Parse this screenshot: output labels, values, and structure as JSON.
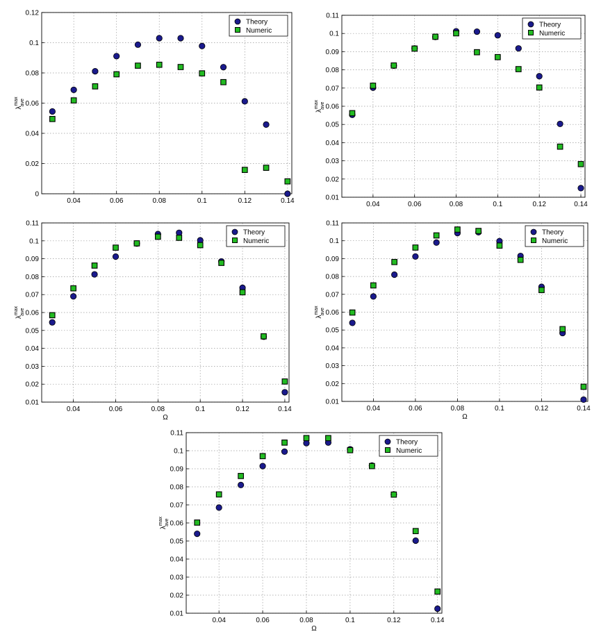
{
  "legend": {
    "theory": "Theory",
    "numeric": "Numeric"
  },
  "colors": {
    "theory": "#1a1a8c",
    "numeric": "#22bb22",
    "marker_edge": "#000000",
    "grid": "#9a9a9a"
  },
  "chart_data": [
    {
      "type": "scatter",
      "xlabel": "",
      "ylabel": {
        "base": "λ",
        "sup": "max",
        "sub": "ave"
      },
      "xlim": [
        0.025,
        0.142
      ],
      "ylim": [
        0,
        0.12
      ],
      "xticks": [
        "0.04",
        "0.06",
        "0.08",
        "0.1",
        "0.12",
        "0.14"
      ],
      "yticks": [
        "0",
        "0.02",
        "0.04",
        "0.06",
        "0.08",
        "0.1",
        "0.12"
      ],
      "legend_position": "top-right",
      "series": [
        {
          "name": "Theory",
          "marker": "circle",
          "x": [
            0.03,
            0.04,
            0.05,
            0.06,
            0.07,
            0.08,
            0.09,
            0.1,
            0.11,
            0.12,
            0.13,
            0.14
          ],
          "y": [
            0.0545,
            0.0688,
            0.0811,
            0.0911,
            0.0987,
            0.103,
            0.103,
            0.0978,
            0.0838,
            0.0612,
            0.0458,
            0.0
          ]
        },
        {
          "name": "Numeric",
          "marker": "square",
          "x": [
            0.03,
            0.04,
            0.05,
            0.06,
            0.07,
            0.08,
            0.09,
            0.1,
            0.11,
            0.12,
            0.13,
            0.14
          ],
          "y": [
            0.0495,
            0.0618,
            0.0711,
            0.0791,
            0.0848,
            0.0854,
            0.0839,
            0.0797,
            0.0739,
            0.0158,
            0.0172,
            0.0082
          ]
        }
      ]
    },
    {
      "type": "scatter",
      "xlabel": "",
      "ylabel": {
        "base": "λ",
        "sup": "max",
        "sub": "ave"
      },
      "xlim": [
        0.025,
        0.142
      ],
      "ylim": [
        0.01,
        0.11
      ],
      "xticks": [
        "0.04",
        "0.06",
        "0.08",
        "0.1",
        "0.12",
        "0.14"
      ],
      "yticks": [
        "0.01",
        "0.02",
        "0.03",
        "0.04",
        "0.05",
        "0.06",
        "0.07",
        "0.08",
        "0.09",
        "0.1",
        "0.11"
      ],
      "legend_position": "top-right",
      "series": [
        {
          "name": "Theory",
          "marker": "circle",
          "x": [
            0.03,
            0.04,
            0.05,
            0.06,
            0.07,
            0.08,
            0.09,
            0.1,
            0.11,
            0.12,
            0.13,
            0.14
          ],
          "y": [
            0.0553,
            0.0702,
            0.0823,
            0.0918,
            0.0981,
            0.1012,
            0.101,
            0.099,
            0.0918,
            0.0765,
            0.0503,
            0.015
          ]
        },
        {
          "name": "Numeric",
          "marker": "square",
          "x": [
            0.03,
            0.04,
            0.05,
            0.06,
            0.07,
            0.08,
            0.09,
            0.1,
            0.11,
            0.12,
            0.13,
            0.14
          ],
          "y": [
            0.0562,
            0.0713,
            0.0824,
            0.0917,
            0.0982,
            0.1001,
            0.0897,
            0.087,
            0.0804,
            0.0703,
            0.0378,
            0.0282
          ]
        }
      ]
    },
    {
      "type": "scatter",
      "xlabel": "Ω",
      "ylabel": {
        "base": "λ",
        "sup": "max",
        "sub": "ave"
      },
      "xlim": [
        0.025,
        0.142
      ],
      "ylim": [
        0.01,
        0.11
      ],
      "xticks": [
        "0.04",
        "0.06",
        "0.08",
        "0.1",
        "0.12",
        "0.14"
      ],
      "yticks": [
        "0.01",
        "0.02",
        "0.03",
        "0.04",
        "0.05",
        "0.06",
        "0.07",
        "0.08",
        "0.09",
        "0.1",
        "0.11"
      ],
      "legend_position": "top-right",
      "series": [
        {
          "name": "Theory",
          "marker": "circle",
          "x": [
            0.03,
            0.04,
            0.05,
            0.06,
            0.07,
            0.08,
            0.09,
            0.1,
            0.11,
            0.12,
            0.13,
            0.14
          ],
          "y": [
            0.0545,
            0.069,
            0.0813,
            0.0912,
            0.0985,
            0.1038,
            0.1045,
            0.1003,
            0.0885,
            0.0738,
            0.0465,
            0.0155
          ]
        },
        {
          "name": "Numeric",
          "marker": "square",
          "x": [
            0.03,
            0.04,
            0.05,
            0.06,
            0.07,
            0.08,
            0.09,
            0.1,
            0.11,
            0.12,
            0.13,
            0.14
          ],
          "y": [
            0.0585,
            0.0735,
            0.0862,
            0.0962,
            0.0986,
            0.1023,
            0.1017,
            0.0976,
            0.0877,
            0.0713,
            0.0467,
            0.0215
          ]
        }
      ]
    },
    {
      "type": "scatter",
      "xlabel": "Ω",
      "ylabel": {
        "base": "λ",
        "sup": "max",
        "sub": "ave"
      },
      "xlim": [
        0.025,
        0.142
      ],
      "ylim": [
        0.01,
        0.11
      ],
      "xticks": [
        "0.04",
        "0.06",
        "0.08",
        "0.1",
        "0.12",
        "0.14"
      ],
      "yticks": [
        "0.01",
        "0.02",
        "0.03",
        "0.04",
        "0.05",
        "0.06",
        "0.07",
        "0.08",
        "0.09",
        "0.1",
        "0.11"
      ],
      "legend_position": "top-right",
      "series": [
        {
          "name": "Theory",
          "marker": "circle",
          "x": [
            0.03,
            0.04,
            0.05,
            0.06,
            0.07,
            0.08,
            0.09,
            0.1,
            0.11,
            0.12,
            0.13,
            0.14
          ],
          "y": [
            0.054,
            0.0688,
            0.081,
            0.0912,
            0.099,
            0.1043,
            0.1048,
            0.0998,
            0.0915,
            0.0742,
            0.0483,
            0.011
          ]
        },
        {
          "name": "Numeric",
          "marker": "square",
          "x": [
            0.03,
            0.04,
            0.05,
            0.06,
            0.07,
            0.08,
            0.09,
            0.1,
            0.11,
            0.12,
            0.13,
            0.14
          ],
          "y": [
            0.0598,
            0.075,
            0.0881,
            0.0962,
            0.103,
            0.1063,
            0.1055,
            0.0973,
            0.0893,
            0.0724,
            0.0505,
            0.0182
          ]
        }
      ]
    },
    {
      "type": "scatter",
      "xlabel": "Ω",
      "ylabel": {
        "base": "λ",
        "sup": "max",
        "sub": "ave"
      },
      "xlim": [
        0.025,
        0.142
      ],
      "ylim": [
        0.01,
        0.11
      ],
      "xticks": [
        "0.04",
        "0.06",
        "0.08",
        "0.1",
        "0.12",
        "0.14"
      ],
      "yticks": [
        "0.01",
        "0.02",
        "0.03",
        "0.04",
        "0.05",
        "0.06",
        "0.07",
        "0.08",
        "0.09",
        "0.1",
        "0.11"
      ],
      "legend_position": "top-right",
      "series": [
        {
          "name": "Theory",
          "marker": "circle",
          "x": [
            0.03,
            0.04,
            0.05,
            0.06,
            0.07,
            0.08,
            0.09,
            0.1,
            0.11,
            0.12,
            0.13,
            0.14
          ],
          "y": [
            0.054,
            0.0685,
            0.081,
            0.0915,
            0.0995,
            0.1042,
            0.1045,
            0.1008,
            0.0918,
            0.0758,
            0.0502,
            0.0125
          ]
        },
        {
          "name": "Numeric",
          "marker": "square",
          "x": [
            0.03,
            0.04,
            0.05,
            0.06,
            0.07,
            0.08,
            0.09,
            0.1,
            0.11,
            0.12,
            0.13,
            0.14
          ],
          "y": [
            0.0602,
            0.0758,
            0.086,
            0.097,
            0.1045,
            0.107,
            0.107,
            0.1003,
            0.0915,
            0.0757,
            0.0555,
            0.022
          ]
        }
      ]
    }
  ]
}
